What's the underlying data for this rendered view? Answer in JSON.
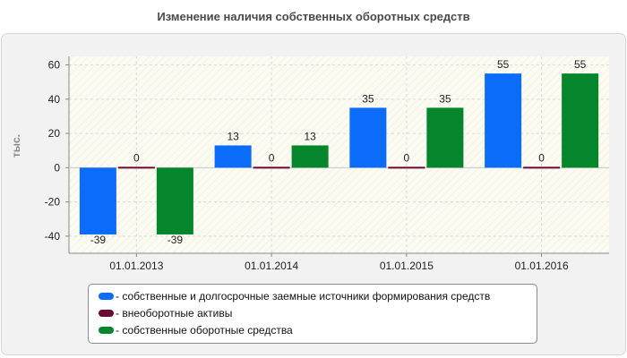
{
  "title": "Изменение наличия собственных оборотных средств",
  "chart_data": {
    "type": "bar",
    "ylabel": "тыс.",
    "ylim": [
      -50,
      65
    ],
    "yticks": [
      60,
      40,
      20,
      0,
      -20,
      -40
    ],
    "grid": true,
    "legend_position": "bottom",
    "categories": [
      "01.01.2013",
      "01.01.2014",
      "01.01.2015",
      "01.01.2016"
    ],
    "series": [
      {
        "name": "- собственные и долгосрочные заемные источники формирования средств",
        "color": "#0b6cfa",
        "values": [
          -39,
          13,
          35,
          55
        ]
      },
      {
        "name": "- внеоборотные активы",
        "color": "#6a0a36",
        "values": [
          0,
          0,
          0,
          0
        ]
      },
      {
        "name": "- собственные оборотные средства",
        "color": "#06862c",
        "values": [
          -39,
          13,
          35,
          55
        ]
      }
    ]
  }
}
